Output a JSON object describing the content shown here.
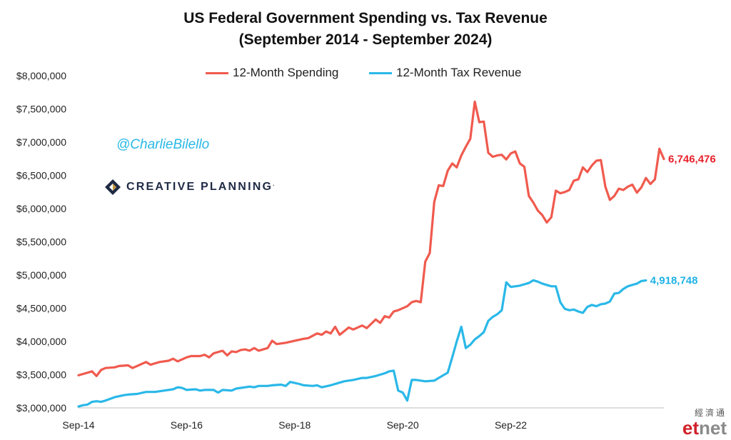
{
  "title_line1": "US Federal Government Spending vs. Tax Revenue",
  "title_line2": "(September 2014 - September 2024)",
  "handle": "@CharlieBilello",
  "logo_text": "CREATIVE PLANNING",
  "logo_tm": ".",
  "watermark_cn": "經濟通",
  "watermark_et": "et",
  "watermark_net": "net",
  "chart_data": {
    "type": "line",
    "title": "US Federal Government Spending vs. Tax Revenue (September 2014 - September 2024)",
    "x_start": "2014-09",
    "x_end": "2024-09",
    "x_ticks": [
      "Sep-14",
      "Sep-16",
      "Sep-18",
      "Sep-20",
      "Sep-22"
    ],
    "y_ticks": [
      "$3,000,000",
      "$3,500,000",
      "$4,000,000",
      "$4,500,000",
      "$5,000,000",
      "$5,500,000",
      "$6,000,000",
      "$6,500,000",
      "$7,000,000",
      "$7,500,000",
      "$8,000,000"
    ],
    "ylim": [
      3000000,
      8000000
    ],
    "legend_position": "top",
    "grid": false,
    "series": [
      {
        "name": "12-Month Spending",
        "color": "#f05a4e",
        "end_label": "6,746,476",
        "end_label_color": "#e8202a",
        "points": [
          [
            "2014-09",
            3490000
          ],
          [
            "2014-12",
            3550000
          ],
          [
            "2015-01",
            3480000
          ],
          [
            "2015-02",
            3570000
          ],
          [
            "2015-03",
            3600000
          ],
          [
            "2015-05",
            3610000
          ],
          [
            "2015-06",
            3630000
          ],
          [
            "2015-08",
            3640000
          ],
          [
            "2015-09",
            3600000
          ],
          [
            "2015-10",
            3630000
          ],
          [
            "2015-12",
            3690000
          ],
          [
            "2016-01",
            3650000
          ],
          [
            "2016-03",
            3690000
          ],
          [
            "2016-05",
            3710000
          ],
          [
            "2016-06",
            3740000
          ],
          [
            "2016-07",
            3700000
          ],
          [
            "2016-09",
            3760000
          ],
          [
            "2016-10",
            3780000
          ],
          [
            "2016-12",
            3780000
          ],
          [
            "2017-01",
            3800000
          ],
          [
            "2017-02",
            3760000
          ],
          [
            "2017-03",
            3820000
          ],
          [
            "2017-05",
            3860000
          ],
          [
            "2017-06",
            3790000
          ],
          [
            "2017-07",
            3850000
          ],
          [
            "2017-08",
            3840000
          ],
          [
            "2017-09",
            3870000
          ],
          [
            "2017-10",
            3880000
          ],
          [
            "2017-11",
            3860000
          ],
          [
            "2017-12",
            3900000
          ],
          [
            "2018-01",
            3860000
          ],
          [
            "2018-03",
            3900000
          ],
          [
            "2018-04",
            4010000
          ],
          [
            "2018-05",
            3960000
          ],
          [
            "2018-07",
            3980000
          ],
          [
            "2018-09",
            4010000
          ],
          [
            "2018-11",
            4040000
          ],
          [
            "2018-12",
            4050000
          ],
          [
            "2019-02",
            4120000
          ],
          [
            "2019-03",
            4100000
          ],
          [
            "2019-04",
            4150000
          ],
          [
            "2019-05",
            4120000
          ],
          [
            "2019-06",
            4220000
          ],
          [
            "2019-07",
            4100000
          ],
          [
            "2019-09",
            4210000
          ],
          [
            "2019-10",
            4180000
          ],
          [
            "2019-12",
            4240000
          ],
          [
            "2020-01",
            4200000
          ],
          [
            "2020-03",
            4330000
          ],
          [
            "2020-04",
            4280000
          ],
          [
            "2020-05",
            4380000
          ],
          [
            "2020-06",
            4360000
          ],
          [
            "2020-07",
            4450000
          ],
          [
            "2020-08",
            4470000
          ],
          [
            "2020-10",
            4530000
          ],
          [
            "2020-11",
            4590000
          ],
          [
            "2020-12",
            4610000
          ],
          [
            "2021-01",
            4590000
          ],
          [
            "2021-02",
            5200000
          ],
          [
            "2021-03",
            5330000
          ],
          [
            "2021-04",
            6100000
          ],
          [
            "2021-05",
            6350000
          ],
          [
            "2021-06",
            6340000
          ],
          [
            "2021-07",
            6570000
          ],
          [
            "2021-08",
            6680000
          ],
          [
            "2021-09",
            6620000
          ],
          [
            "2021-10",
            6800000
          ],
          [
            "2021-11",
            6930000
          ],
          [
            "2021-12",
            7050000
          ],
          [
            "2022-01",
            7610000
          ],
          [
            "2022-02",
            7300000
          ],
          [
            "2022-03",
            7310000
          ],
          [
            "2022-04",
            6840000
          ],
          [
            "2022-05",
            6780000
          ],
          [
            "2022-06",
            6800000
          ],
          [
            "2022-07",
            6810000
          ],
          [
            "2022-08",
            6740000
          ],
          [
            "2022-09",
            6830000
          ],
          [
            "2022-10",
            6860000
          ],
          [
            "2022-11",
            6680000
          ],
          [
            "2022-12",
            6630000
          ],
          [
            "2023-01",
            6190000
          ],
          [
            "2023-02",
            6090000
          ],
          [
            "2023-03",
            5970000
          ],
          [
            "2023-04",
            5900000
          ],
          [
            "2023-05",
            5790000
          ],
          [
            "2023-06",
            5870000
          ],
          [
            "2023-07",
            6270000
          ],
          [
            "2023-08",
            6230000
          ],
          [
            "2023-09",
            6250000
          ],
          [
            "2023-10",
            6280000
          ],
          [
            "2023-11",
            6420000
          ],
          [
            "2023-12",
            6440000
          ],
          [
            "2024-01",
            6620000
          ],
          [
            "2024-02",
            6550000
          ],
          [
            "2024-03",
            6650000
          ],
          [
            "2024-04",
            6720000
          ],
          [
            "2024-05",
            6730000
          ],
          [
            "2024-06",
            6330000
          ],
          [
            "2024-07",
            6130000
          ],
          [
            "2024-08",
            6190000
          ],
          [
            "2024-09",
            6300000
          ],
          [
            "2024-10",
            6280000
          ],
          [
            "2024-11",
            6330000
          ],
          [
            "2024-12",
            6360000
          ],
          [
            "2025-01",
            6240000
          ],
          [
            "2025-02",
            6320000
          ],
          [
            "2025-03",
            6460000
          ],
          [
            "2025-04",
            6370000
          ],
          [
            "2025-05",
            6440000
          ],
          [
            "2025-06",
            6900000
          ],
          [
            "2025-07",
            6746476
          ]
        ]
      },
      {
        "name": "12-Month Tax Revenue",
        "color": "#2ab8e8",
        "end_label": "4,918,748",
        "end_label_color": "#1fb2e6",
        "points": [
          [
            "2014-09",
            3020000
          ],
          [
            "2014-10",
            3040000
          ],
          [
            "2014-11",
            3050000
          ],
          [
            "2014-12",
            3090000
          ],
          [
            "2015-01",
            3100000
          ],
          [
            "2015-02",
            3090000
          ],
          [
            "2015-03",
            3110000
          ],
          [
            "2015-05",
            3160000
          ],
          [
            "2015-07",
            3190000
          ],
          [
            "2015-08",
            3200000
          ],
          [
            "2015-10",
            3210000
          ],
          [
            "2015-12",
            3240000
          ],
          [
            "2016-02",
            3240000
          ],
          [
            "2016-04",
            3260000
          ],
          [
            "2016-06",
            3280000
          ],
          [
            "2016-07",
            3310000
          ],
          [
            "2016-08",
            3300000
          ],
          [
            "2016-09",
            3270000
          ],
          [
            "2016-11",
            3280000
          ],
          [
            "2016-12",
            3260000
          ],
          [
            "2017-01",
            3270000
          ],
          [
            "2017-03",
            3270000
          ],
          [
            "2017-04",
            3230000
          ],
          [
            "2017-05",
            3270000
          ],
          [
            "2017-07",
            3260000
          ],
          [
            "2017-08",
            3290000
          ],
          [
            "2017-10",
            3310000
          ],
          [
            "2017-11",
            3320000
          ],
          [
            "2017-12",
            3310000
          ],
          [
            "2018-01",
            3330000
          ],
          [
            "2018-03",
            3330000
          ],
          [
            "2018-04",
            3340000
          ],
          [
            "2018-06",
            3350000
          ],
          [
            "2018-07",
            3330000
          ],
          [
            "2018-08",
            3390000
          ],
          [
            "2018-10",
            3360000
          ],
          [
            "2018-11",
            3340000
          ],
          [
            "2019-01",
            3330000
          ],
          [
            "2019-02",
            3340000
          ],
          [
            "2019-03",
            3310000
          ],
          [
            "2019-05",
            3340000
          ],
          [
            "2019-07",
            3380000
          ],
          [
            "2019-08",
            3400000
          ],
          [
            "2019-10",
            3420000
          ],
          [
            "2019-12",
            3450000
          ],
          [
            "2020-01",
            3450000
          ],
          [
            "2020-03",
            3480000
          ],
          [
            "2020-05",
            3520000
          ],
          [
            "2020-06",
            3550000
          ],
          [
            "2020-07",
            3560000
          ],
          [
            "2020-08",
            3260000
          ],
          [
            "2020-09",
            3230000
          ],
          [
            "2020-10",
            3110000
          ],
          [
            "2020-11",
            3420000
          ],
          [
            "2020-12",
            3420000
          ],
          [
            "2021-02",
            3400000
          ],
          [
            "2021-04",
            3410000
          ],
          [
            "2021-05",
            3450000
          ],
          [
            "2021-06",
            3490000
          ],
          [
            "2021-07",
            3530000
          ],
          [
            "2021-08",
            3760000
          ],
          [
            "2021-09",
            4000000
          ],
          [
            "2021-10",
            4220000
          ],
          [
            "2021-11",
            3900000
          ],
          [
            "2021-12",
            3950000
          ],
          [
            "2022-01",
            4030000
          ],
          [
            "2022-02",
            4080000
          ],
          [
            "2022-03",
            4140000
          ],
          [
            "2022-04",
            4310000
          ],
          [
            "2022-05",
            4370000
          ],
          [
            "2022-06",
            4410000
          ],
          [
            "2022-07",
            4470000
          ],
          [
            "2022-08",
            4890000
          ],
          [
            "2022-09",
            4820000
          ],
          [
            "2022-10",
            4830000
          ],
          [
            "2022-11",
            4840000
          ],
          [
            "2022-12",
            4860000
          ],
          [
            "2023-01",
            4880000
          ],
          [
            "2023-02",
            4920000
          ],
          [
            "2023-03",
            4900000
          ],
          [
            "2023-04",
            4870000
          ],
          [
            "2023-05",
            4850000
          ],
          [
            "2023-06",
            4830000
          ],
          [
            "2023-07",
            4830000
          ],
          [
            "2023-08",
            4590000
          ],
          [
            "2023-09",
            4490000
          ],
          [
            "2023-10",
            4470000
          ],
          [
            "2023-11",
            4480000
          ],
          [
            "2023-12",
            4450000
          ],
          [
            "2024-01",
            4430000
          ],
          [
            "2024-02",
            4520000
          ],
          [
            "2024-03",
            4550000
          ],
          [
            "2024-04",
            4530000
          ],
          [
            "2024-05",
            4560000
          ],
          [
            "2024-06",
            4570000
          ],
          [
            "2024-07",
            4600000
          ],
          [
            "2024-08",
            4720000
          ],
          [
            "2024-09",
            4730000
          ],
          [
            "2024-10",
            4790000
          ],
          [
            "2024-11",
            4830000
          ],
          [
            "2024-12",
            4850000
          ],
          [
            "2025-01",
            4870000
          ],
          [
            "2025-02",
            4910000
          ],
          [
            "2025-03",
            4918748
          ]
        ]
      }
    ]
  }
}
